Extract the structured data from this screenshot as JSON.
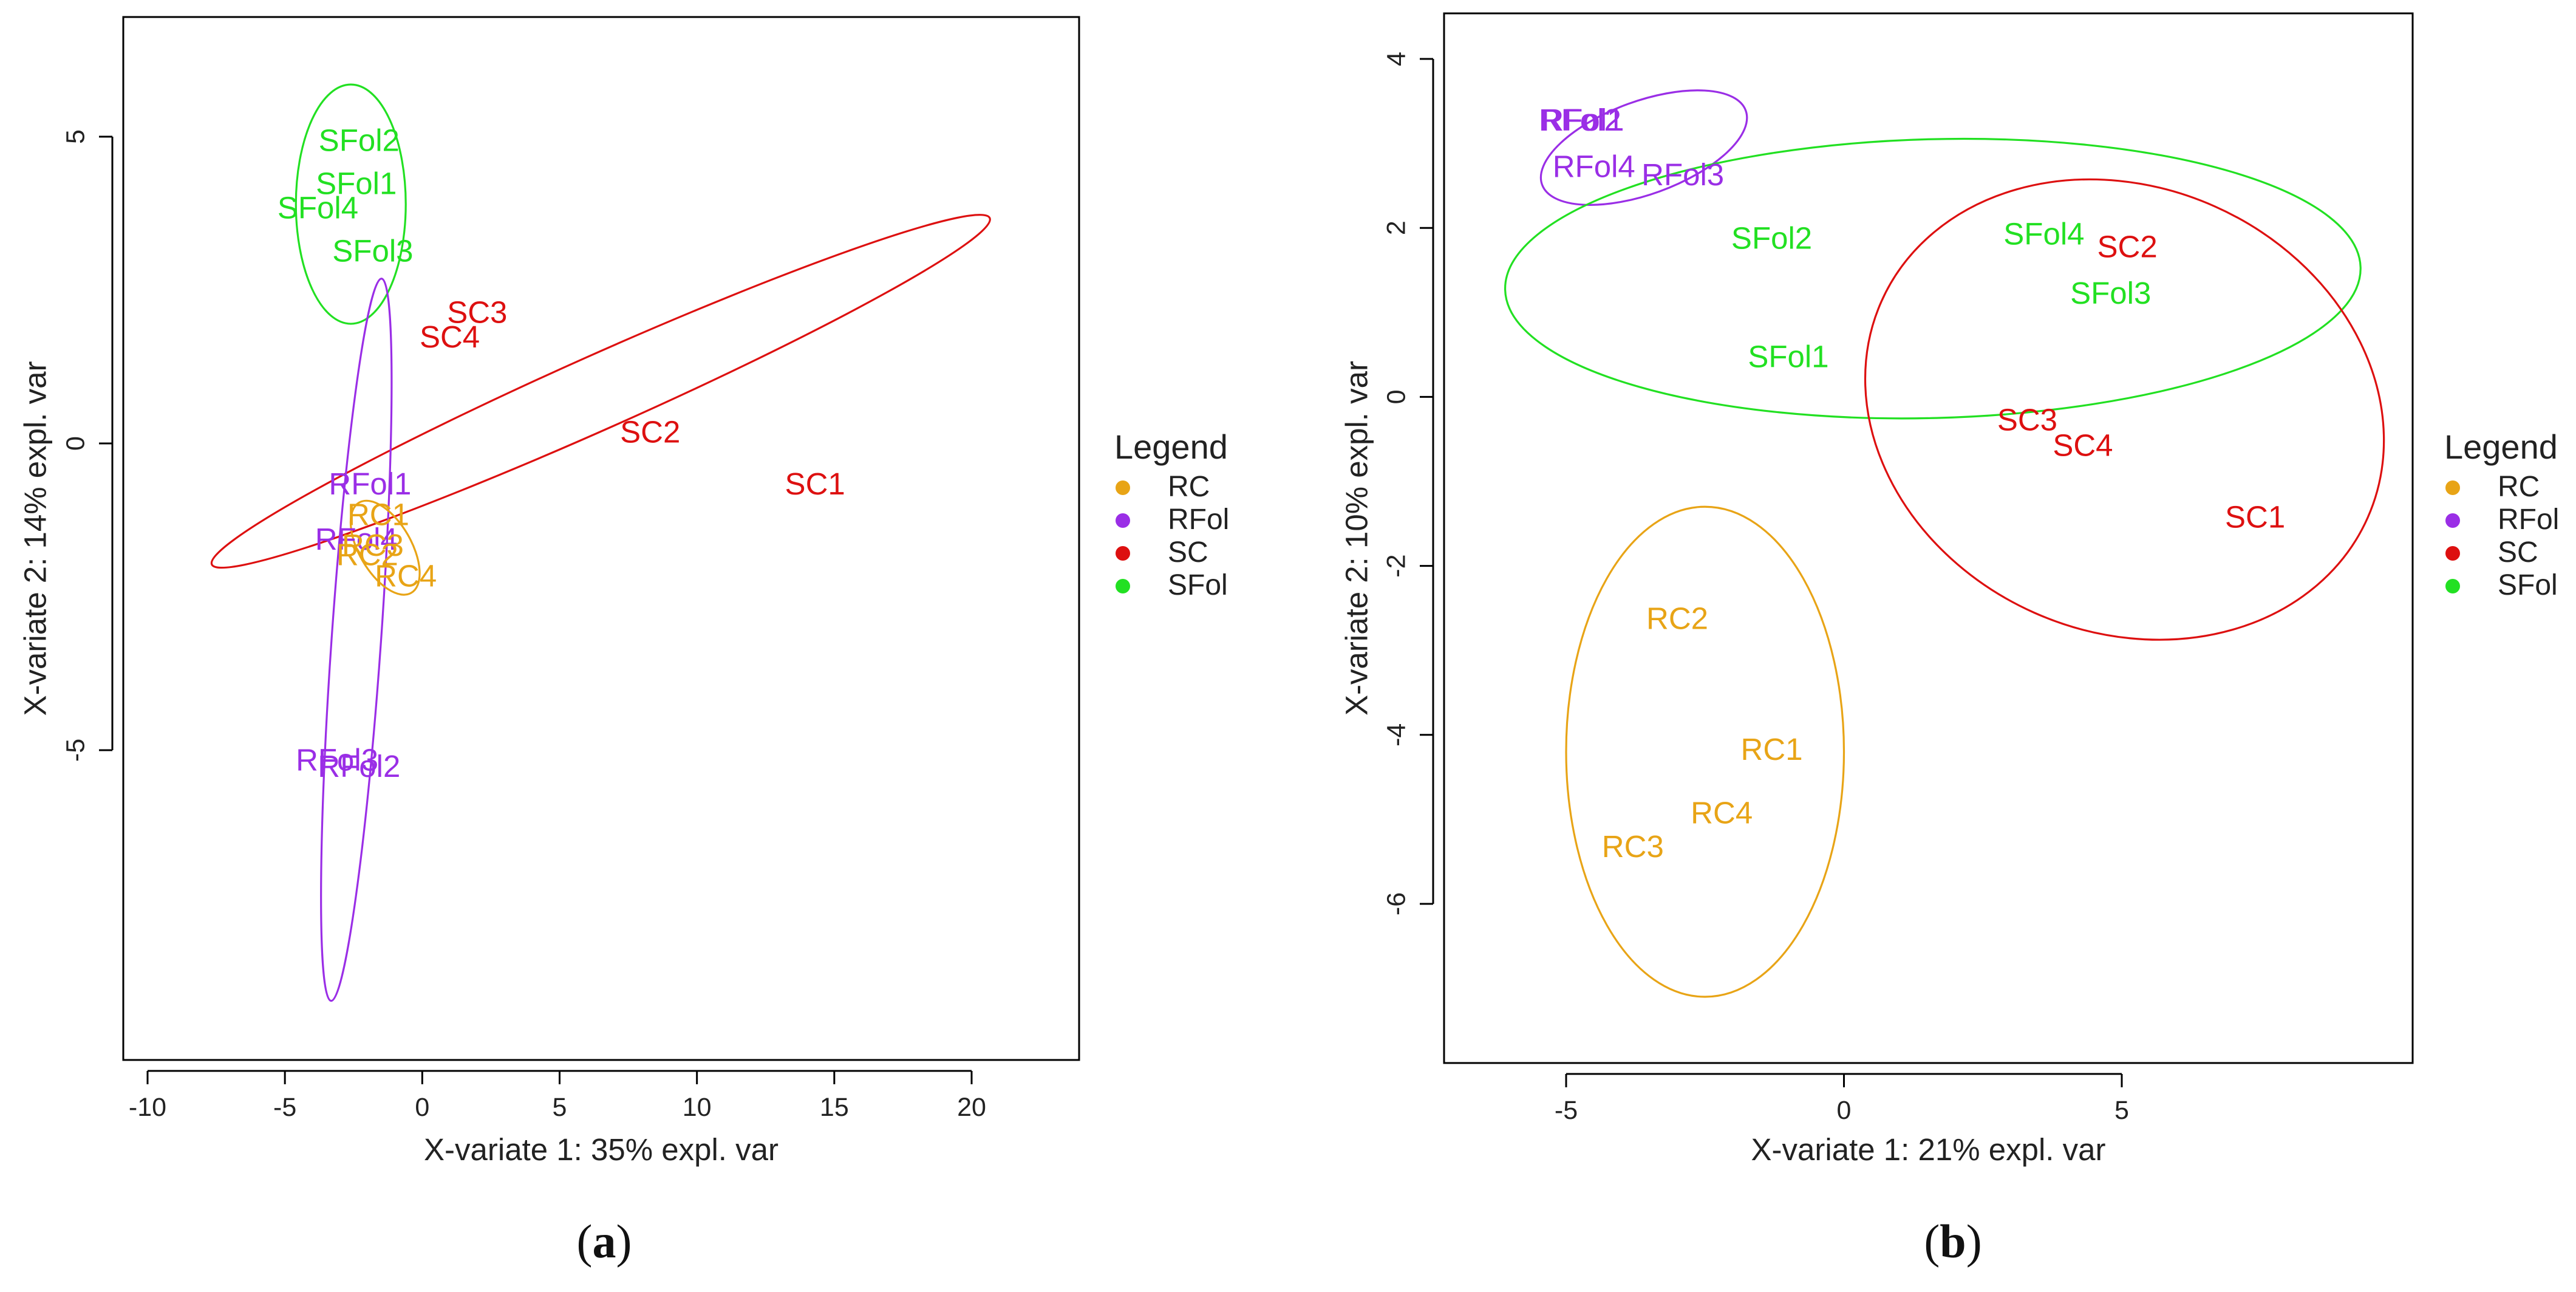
{
  "colors": {
    "RC": "#e8a416",
    "RFol": "#9a2ee6",
    "SC": "#dd1010",
    "SFol": "#22e022"
  },
  "chart_data": [
    {
      "type": "scatter",
      "id": "a",
      "caption_letter": "a",
      "xlabel": "X-variate 1: 35% expl. var",
      "ylabel": "X-variate 2: 14% expl. var",
      "xlim": [
        -11,
        23.5
      ],
      "ylim": [
        -10,
        7
      ],
      "xticks": [
        -10,
        -5,
        0,
        5,
        10,
        15,
        20
      ],
      "yticks": [
        -5,
        0,
        5
      ],
      "tick_labels_x": [
        "-10",
        "-5",
        "0",
        "5",
        "10",
        "15",
        "20"
      ],
      "tick_labels_y": [
        "-5",
        "0",
        "5"
      ],
      "legend": {
        "title": "Legend",
        "entries": [
          {
            "group": "RC",
            "label": "RC"
          },
          {
            "group": "RFol",
            "label": "RFol"
          },
          {
            "group": "SC",
            "label": "SC"
          },
          {
            "group": "SFol",
            "label": "SFol"
          }
        ]
      },
      "points": [
        {
          "label": "SFol2",
          "group": "SFol",
          "x": -2.3,
          "y": 4.9
        },
        {
          "label": "SFol1",
          "group": "SFol",
          "x": -2.4,
          "y": 4.2
        },
        {
          "label": "SFol4",
          "group": "SFol",
          "x": -3.8,
          "y": 3.8
        },
        {
          "label": "SFol3",
          "group": "SFol",
          "x": -1.8,
          "y": 3.1
        },
        {
          "label": "SC3",
          "group": "SC",
          "x": 2.0,
          "y": 2.1
        },
        {
          "label": "SC4",
          "group": "SC",
          "x": 1.0,
          "y": 1.7
        },
        {
          "label": "SC2",
          "group": "SC",
          "x": 8.3,
          "y": 0.15
        },
        {
          "label": "SC1",
          "group": "SC",
          "x": 14.3,
          "y": -0.7
        },
        {
          "label": "RFol1",
          "group": "RFol",
          "x": -1.9,
          "y": -0.7
        },
        {
          "label": "RC1",
          "group": "RC",
          "x": -1.6,
          "y": -1.2
        },
        {
          "label": "RFol4",
          "group": "RFol",
          "x": -2.4,
          "y": -1.6
        },
        {
          "label": "RC3",
          "group": "RC",
          "x": -1.8,
          "y": -1.7
        },
        {
          "label": "RC2",
          "group": "RC",
          "x": -2.0,
          "y": -1.85
        },
        {
          "label": "RC4",
          "group": "RC",
          "x": -0.6,
          "y": -2.2
        },
        {
          "label": "RFol3",
          "group": "RFol",
          "x": -3.1,
          "y": -5.2
        },
        {
          "label": "RFol2",
          "group": "RFol",
          "x": -2.3,
          "y": -5.3
        }
      ],
      "ellipses": [
        {
          "group": "SFol",
          "cx": -2.6,
          "cy": 3.9,
          "rx": 2.0,
          "ry": 1.95,
          "angle": 0
        },
        {
          "group": "SC",
          "cx": 6.5,
          "cy": 0.85,
          "rx": 15.5,
          "ry": 0.6,
          "angle": -24
        },
        {
          "group": "RFol",
          "cx": -2.4,
          "cy": -3.2,
          "rx": 0.9,
          "ry": 5.9,
          "angle": 4
        },
        {
          "group": "RC",
          "cx": -1.35,
          "cy": -1.7,
          "rx": 0.95,
          "ry": 0.85,
          "angle": -30
        }
      ]
    },
    {
      "type": "scatter",
      "id": "b",
      "caption_letter": "b",
      "xlabel": "X-variate 1: 21% expl. var",
      "ylabel": "X-variate 2: 10% expl. var",
      "xlim": [
        -7.2,
        10.2
      ],
      "ylim": [
        -7.9,
        4.55
      ],
      "xticks": [
        -5,
        0,
        5
      ],
      "yticks": [
        -6,
        -4,
        -2,
        0,
        2,
        4
      ],
      "tick_labels_x": [
        "-5",
        "0",
        "5"
      ],
      "tick_labels_y": [
        "-6",
        "-4",
        "-2",
        "0",
        "2",
        "4"
      ],
      "legend": {
        "title": "Legend",
        "entries": [
          {
            "group": "RC",
            "label": "RC"
          },
          {
            "group": "RFol",
            "label": "RFol"
          },
          {
            "group": "SC",
            "label": "SC"
          },
          {
            "group": "SFol",
            "label": "SFol"
          }
        ]
      },
      "points": [
        {
          "label": "RFol1",
          "group": "RFol",
          "x": -4.7,
          "y": 3.25
        },
        {
          "label": "RFol2",
          "group": "RFol",
          "x": -4.75,
          "y": 3.25
        },
        {
          "label": "RFol4",
          "group": "RFol",
          "x": -4.5,
          "y": 2.7
        },
        {
          "label": "RFol3",
          "group": "RFol",
          "x": -2.9,
          "y": 2.6
        },
        {
          "label": "SFol2",
          "group": "SFol",
          "x": -1.3,
          "y": 1.85
        },
        {
          "label": "SFol4",
          "group": "SFol",
          "x": 3.6,
          "y": 1.9
        },
        {
          "label": "SC2",
          "group": "SC",
          "x": 5.1,
          "y": 1.75
        },
        {
          "label": "SFol3",
          "group": "SFol",
          "x": 4.8,
          "y": 1.2
        },
        {
          "label": "SFol1",
          "group": "SFol",
          "x": -1.0,
          "y": 0.45
        },
        {
          "label": "SC3",
          "group": "SC",
          "x": 3.3,
          "y": -0.3
        },
        {
          "label": "SC4",
          "group": "SC",
          "x": 4.3,
          "y": -0.6
        },
        {
          "label": "SC1",
          "group": "SC",
          "x": 7.4,
          "y": -1.45
        },
        {
          "label": "RC2",
          "group": "RC",
          "x": -3.0,
          "y": -2.65
        },
        {
          "label": "RC1",
          "group": "RC",
          "x": -1.3,
          "y": -4.2
        },
        {
          "label": "RC4",
          "group": "RC",
          "x": -2.2,
          "y": -4.95
        },
        {
          "label": "RC3",
          "group": "RC",
          "x": -3.8,
          "y": -5.35
        }
      ],
      "ellipses": [
        {
          "group": "RFol",
          "cx": -3.6,
          "cy": 2.95,
          "rx": 1.95,
          "ry": 0.55,
          "angle": -20
        },
        {
          "group": "SFol",
          "cx": 1.6,
          "cy": 1.4,
          "rx": 7.7,
          "ry": 1.65,
          "angle": -1.5
        },
        {
          "group": "SC",
          "cx": 5.05,
          "cy": -0.15,
          "rx": 4.0,
          "ry": 3.15,
          "angle": -66
        },
        {
          "group": "RC",
          "cx": -2.5,
          "cy": -4.2,
          "rx": 2.5,
          "ry": 2.9,
          "angle": 0
        }
      ]
    }
  ]
}
